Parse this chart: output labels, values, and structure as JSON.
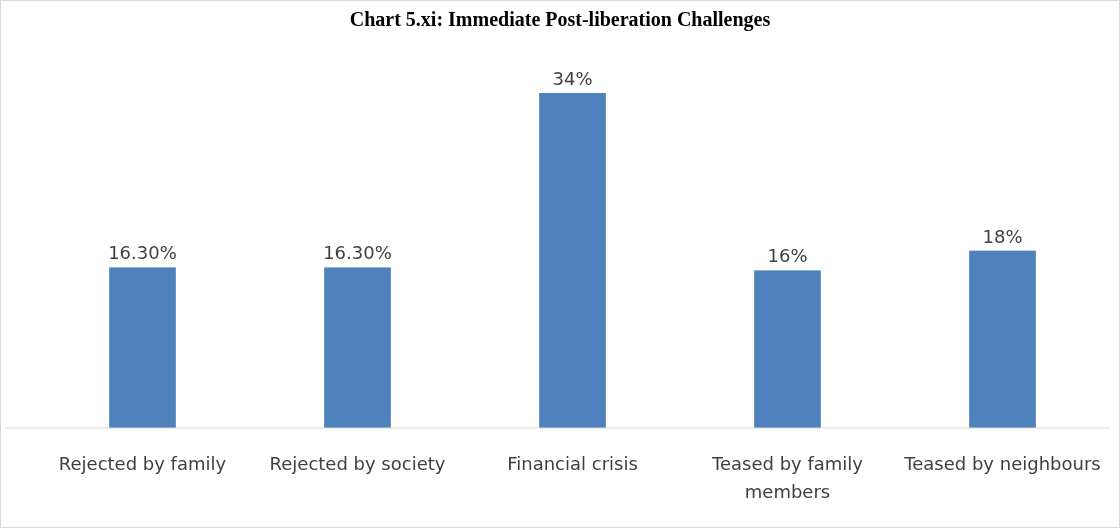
{
  "chart_data": {
    "type": "bar",
    "title": "Chart 5.xi: Immediate Post-liberation Challenges",
    "categories": [
      "Rejected by family",
      "Rejected by society",
      "Financial crisis",
      "Teased by family members",
      "Teased by neighbours"
    ],
    "values": [
      16.3,
      16.3,
      34,
      16,
      18
    ],
    "value_labels": [
      "16.30%",
      "16.30%",
      "34%",
      "16%",
      "18%"
    ],
    "color": "#4f81bd"
  }
}
